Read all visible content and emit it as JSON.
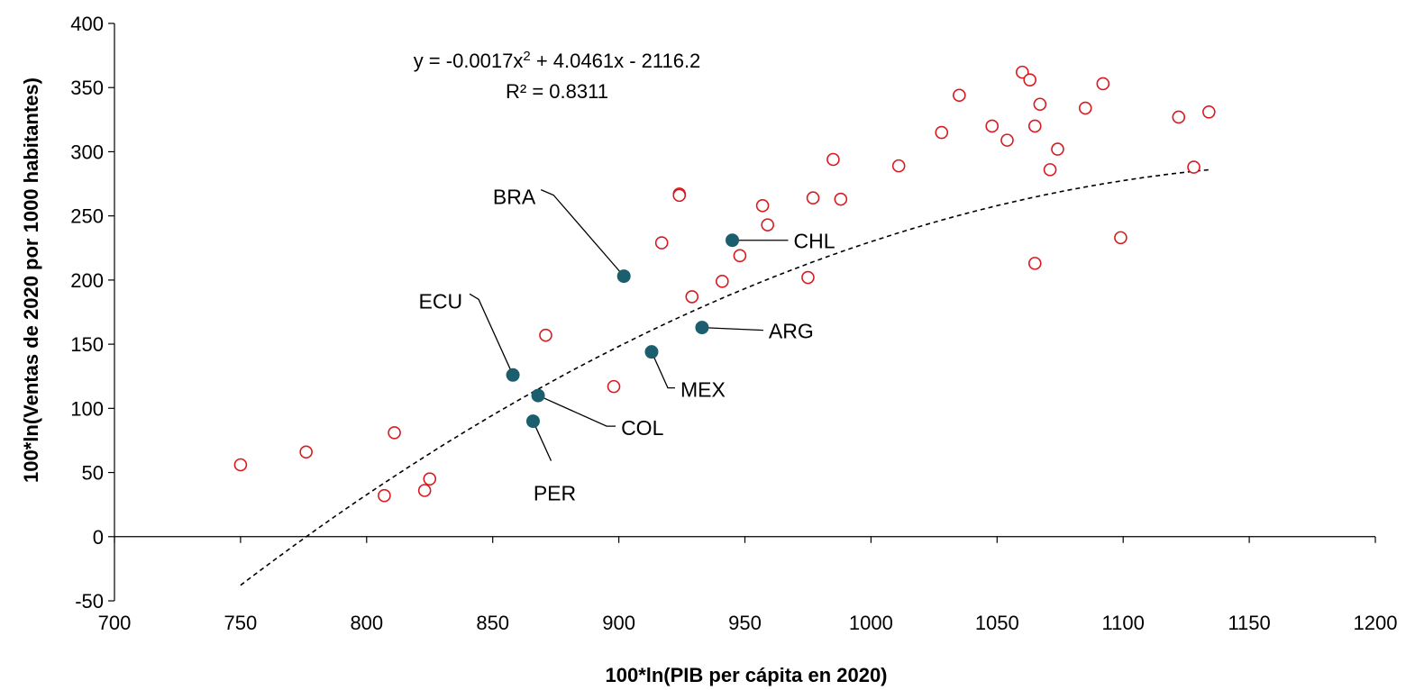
{
  "chart_data": {
    "type": "scatter",
    "xlabel": "100*ln(PIB per cápita en 2020)",
    "ylabel": "100*ln(Ventas de 2020 por 1000 habitantes)",
    "xlim": [
      700,
      1200
    ],
    "ylim": [
      -50,
      400
    ],
    "x_ticks": [
      "700",
      "750",
      "800",
      "850",
      "900",
      "950",
      "1000",
      "1050",
      "1100",
      "1150",
      "1200"
    ],
    "y_ticks": [
      "-50",
      "0",
      "50",
      "100",
      "150",
      "200",
      "250",
      "300",
      "350",
      "400"
    ],
    "grid": false,
    "trendline": {
      "kind": "polynomial-2",
      "coefficients": [
        -0.0017,
        4.0461,
        -2116.2
      ],
      "x_range": [
        750,
        1135
      ],
      "equation_prefix": "y = -0.0017x",
      "equation_sup": "2",
      "equation_suffix": " + 4.0461x - 2116.2",
      "r2_label": "R² = 0.8311"
    },
    "series": [
      {
        "marker": "open-circle",
        "color": "#d9191f",
        "points": [
          [
            750,
            56
          ],
          [
            776,
            66
          ],
          [
            807,
            32
          ],
          [
            811,
            81
          ],
          [
            823,
            36
          ],
          [
            825,
            45
          ],
          [
            871,
            157
          ],
          [
            898,
            117
          ],
          [
            917,
            229
          ],
          [
            924,
            267
          ],
          [
            924,
            266
          ],
          [
            929,
            187
          ],
          [
            941,
            199
          ],
          [
            948,
            219
          ],
          [
            957,
            258
          ],
          [
            959,
            243
          ],
          [
            975,
            202
          ],
          [
            977,
            264
          ],
          [
            985,
            294
          ],
          [
            988,
            263
          ],
          [
            1011,
            289
          ],
          [
            1028,
            315
          ],
          [
            1035,
            344
          ],
          [
            1048,
            320
          ],
          [
            1054,
            309
          ],
          [
            1060,
            362
          ],
          [
            1063,
            356
          ],
          [
            1065,
            320
          ],
          [
            1065,
            213
          ],
          [
            1067,
            337
          ],
          [
            1071,
            286
          ],
          [
            1074,
            302
          ],
          [
            1085,
            334
          ],
          [
            1092,
            353
          ],
          [
            1099,
            233
          ],
          [
            1122,
            327
          ],
          [
            1128,
            288
          ],
          [
            1134,
            331
          ]
        ]
      },
      {
        "marker": "filled-circle",
        "color": "#1b5e6e",
        "points": [
          {
            "label": "BRA",
            "x": 902,
            "y": 203
          },
          {
            "label": "CHL",
            "x": 945,
            "y": 231
          },
          {
            "label": "ARG",
            "x": 933,
            "y": 163
          },
          {
            "label": "MEX",
            "x": 913,
            "y": 144
          },
          {
            "label": "ECU",
            "x": 858,
            "y": 126
          },
          {
            "label": "COL",
            "x": 868,
            "y": 110
          },
          {
            "label": "PER",
            "x": 866,
            "y": 90
          }
        ]
      }
    ]
  },
  "colors": {
    "axis": "#000000",
    "open_marker": "#d9191f",
    "highlight_marker": "#1b5e6e"
  }
}
